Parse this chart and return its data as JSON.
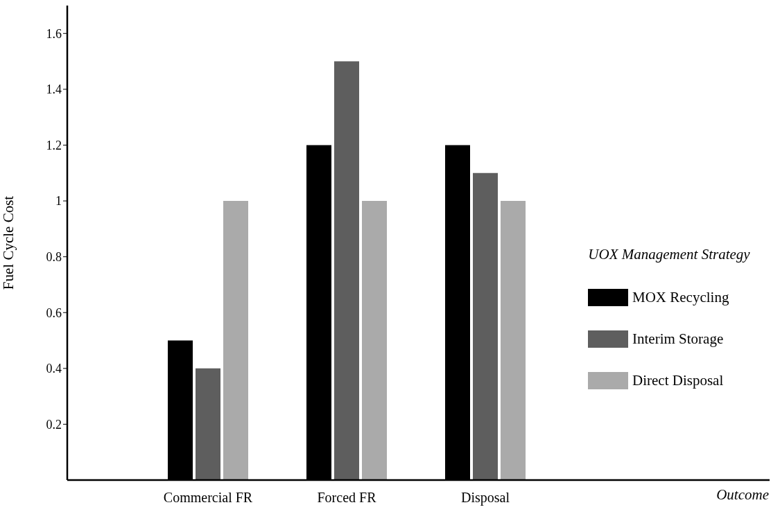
{
  "chart_data": {
    "type": "bar",
    "annotations": [
      "Outcome"
    ],
    "ylabel": "Fuel Cycle Cost",
    "legend_title": "UOX Management Strategy",
    "categories": [
      "Commercial FR",
      "Forced FR",
      "Disposal"
    ],
    "series": [
      {
        "name": "MOX Recycling",
        "color": "#000000",
        "values": [
          0.5,
          1.2,
          1.2
        ]
      },
      {
        "name": "Interim Storage",
        "color": "#5e5e5e",
        "values": [
          0.4,
          1.5,
          1.1
        ]
      },
      {
        "name": "Direct Disposal",
        "color": "#aaaaaa",
        "values": [
          1,
          1,
          1
        ]
      }
    ],
    "ylim": [
      0,
      1.7
    ],
    "yticks": [
      0.2,
      0.4,
      0.6,
      0.8,
      1,
      1.2,
      1.4,
      1.6
    ],
    "grid": false,
    "legend": "right"
  }
}
